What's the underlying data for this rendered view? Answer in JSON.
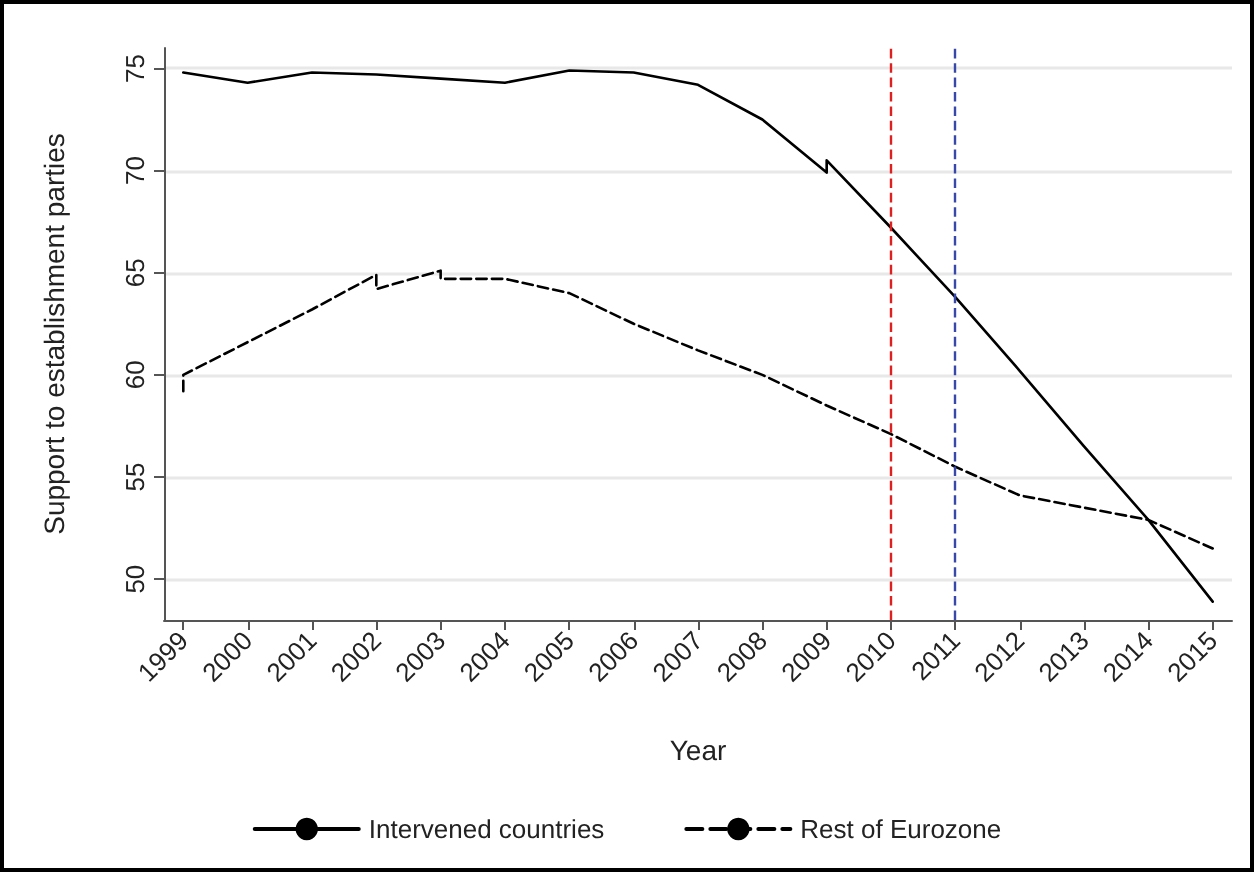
{
  "chart_data": {
    "type": "line",
    "xlabel": "Year",
    "ylabel": "Support to establishment parties",
    "xlim": [
      1998.7,
      2015.3
    ],
    "xticks": [
      1999,
      2000,
      2001,
      2002,
      2003,
      2004,
      2005,
      2006,
      2007,
      2008,
      2009,
      2010,
      2011,
      2012,
      2013,
      2014,
      2015
    ],
    "ylim": [
      48,
      76
    ],
    "yticks": [
      50,
      55,
      60,
      65,
      70,
      75
    ],
    "grid": "y",
    "legend": "bottom",
    "marker": "none",
    "series": [
      {
        "name": "Intervened countries",
        "color": "#000000",
        "line_style": "solid",
        "x": [
          1999,
          2000,
          2001,
          2002,
          2003,
          2004,
          2005,
          2006,
          2007,
          2008,
          2009,
          2009,
          2010,
          2011,
          2012,
          2013,
          2014,
          2015
        ],
        "values": [
          74.8,
          74.3,
          74.8,
          74.7,
          74.5,
          74.3,
          74.9,
          74.8,
          74.2,
          72.5,
          69.9,
          70.5,
          67.2,
          63.8,
          60.2,
          56.5,
          52.9,
          48.9
        ]
      },
      {
        "name": "Rest of Eurozone",
        "color": "#000000",
        "line_style": "dashed",
        "x": [
          1999,
          1999,
          2000,
          2001,
          2002,
          2002,
          2003,
          2003,
          2004,
          2005,
          2006,
          2007,
          2008,
          2009,
          2010,
          2011,
          2012,
          2013,
          2014,
          2015
        ],
        "values": [
          59.2,
          60.0,
          61.6,
          63.2,
          64.9,
          64.2,
          65.1,
          64.7,
          64.7,
          64.0,
          62.5,
          61.2,
          60.0,
          58.5,
          57.1,
          55.5,
          54.1,
          53.5,
          52.9,
          51.5
        ]
      }
    ],
    "ref_lines": [
      {
        "axis": "x",
        "value": 2010,
        "color": "#e02020",
        "line_style": "dashed"
      },
      {
        "axis": "x",
        "value": 2011,
        "color": "#3848a8",
        "line_style": "dashed"
      }
    ]
  }
}
